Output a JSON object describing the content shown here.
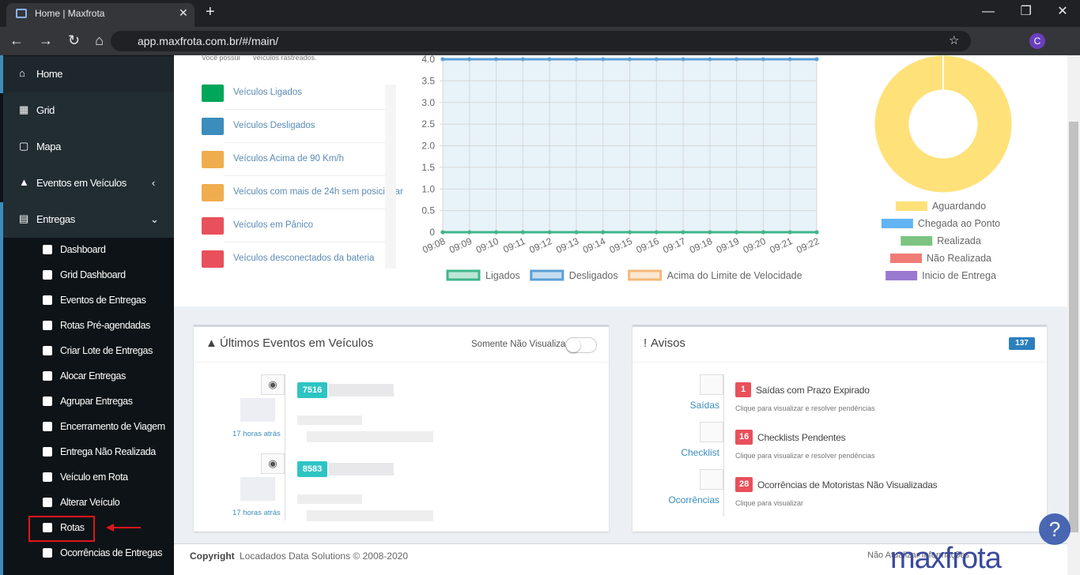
{
  "browser": {
    "tab_title": "Home | Maxfrota",
    "url": "app.maxfrota.com.br/#/main/",
    "profile_initial": "C"
  },
  "sidebar": {
    "items": [
      "Home",
      "Grid",
      "Mapa",
      "Eventos em Veículos",
      "Entregas"
    ],
    "submenu": [
      "Dashboard",
      "Grid Dashboard",
      "Eventos de Entregas",
      "Rotas Pré-agendadas",
      "Criar Lote de Entregas",
      "Alocar Entregas",
      "Agrupar Entregas",
      "Encerramento de Viagem",
      "Entrega Não Realizada",
      "Veículo em Rota",
      "Alterar Veículo",
      "Rotas",
      "Ocorrências de Entregas"
    ]
  },
  "status": {
    "intro_prefix": "Você possui",
    "intro_suffix": "veículos rastreados.",
    "items": [
      {
        "label": "Veículos Ligados",
        "color": "#00a65a"
      },
      {
        "label": "Veículos Desligados",
        "color": "#3c8dbc"
      },
      {
        "label": "Veículos Acima de 90 Km/h",
        "color": "#f0ad4e"
      },
      {
        "label": "Veículos com mais de 24h sem posicionar",
        "color": "#f0ad4e"
      },
      {
        "label": "Veículos em Pânico",
        "color": "#e8505b"
      },
      {
        "label": "Veículos desconectados da bateria",
        "color": "#e8505b"
      }
    ]
  },
  "chart_data": [
    {
      "type": "line",
      "categories": [
        "09:08",
        "09:09",
        "09:10",
        "09:11",
        "09:12",
        "09:13",
        "09:14",
        "09:15",
        "09:16",
        "09:17",
        "09:18",
        "09:19",
        "09:20",
        "09:21",
        "09:22"
      ],
      "series": [
        {
          "name": "Ligados",
          "color": "#3fb68b",
          "values": [
            0,
            0,
            0,
            0,
            0,
            0,
            0,
            0,
            0,
            0,
            0,
            0,
            0,
            0,
            0
          ]
        },
        {
          "name": "Desligados",
          "color": "#5a9fd6",
          "values": [
            4,
            4,
            4,
            4,
            4,
            4,
            4,
            4,
            4,
            4,
            4,
            4,
            4,
            4,
            4
          ]
        },
        {
          "name": "Acima do Limite de Velocidade",
          "color": "#f5b979",
          "values": [
            0,
            0,
            0,
            0,
            0,
            0,
            0,
            0,
            0,
            0,
            0,
            0,
            0,
            0,
            0
          ]
        }
      ],
      "ylim": [
        0,
        4
      ],
      "yticks": [
        0,
        0.5,
        {
          "value": 1,
          "label": "1.0"
        },
        1.5,
        {
          "value": 2,
          "label": "2.0"
        },
        2.5,
        {
          "value": 3,
          "label": "3.0"
        },
        3.5,
        {
          "value": 4,
          "label": "4.0"
        }
      ],
      "grid": true,
      "legend": "bottom"
    },
    {
      "type": "doughnut",
      "categories": [
        "Aguardando",
        "Chegada ao Ponto",
        "Realizada",
        "Não Realizada",
        "Inicio de Entrega"
      ],
      "values": [
        100,
        0,
        0,
        0,
        0
      ],
      "colors": [
        "#ffe17a",
        "#62b3f4",
        "#7cc47f",
        "#f07c76",
        "#9a79d0"
      ],
      "legend": "bottom"
    }
  ],
  "events_panel": {
    "title": "Últimos Eventos em Veículos",
    "toggle_label": "Somente Não Visualizados",
    "events": [
      {
        "code": "7516",
        "time": "17 horas atrás"
      },
      {
        "code": "8583",
        "time": "17 horas atrás"
      }
    ]
  },
  "notices_panel": {
    "title": "Avisos",
    "count": 137,
    "buttons": [
      "Saídas",
      "Checklist",
      "Ocorrências"
    ],
    "items": [
      {
        "count": 1,
        "title": "Saídas com Prazo Expirado",
        "hint": "Clique para visualizar e resolver pendências"
      },
      {
        "count": 16,
        "title": "Checklists Pendentes",
        "hint": "Clique para visualizar e resolver pendências"
      },
      {
        "count": 28,
        "title": "Ocorrências de Motoristas Não Visualizadas",
        "hint": "Clique para visualizar"
      }
    ]
  },
  "footer": {
    "copyright": "Copyright",
    "company": "Locadados Data Solutions © 2008-2020",
    "no_update": "Não Atualizar Informações",
    "logo": "maxfrota"
  }
}
